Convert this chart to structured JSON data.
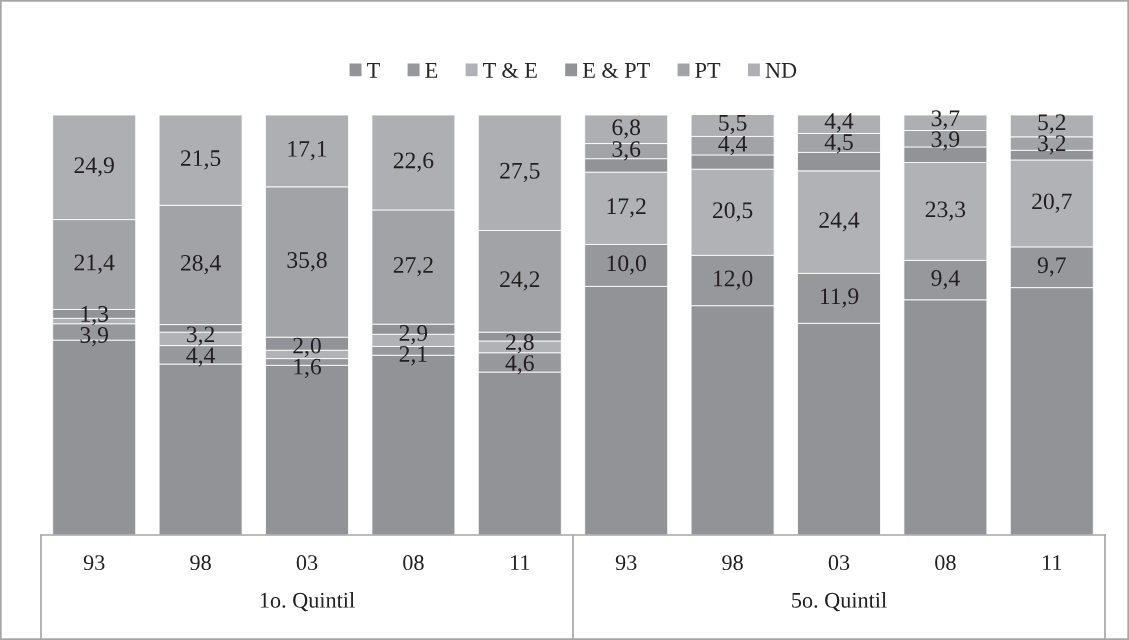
{
  "chart_data": {
    "type": "bar",
    "stacked": true,
    "categories": [
      "93",
      "98",
      "03",
      "08",
      "11",
      "93",
      "98",
      "03",
      "08",
      "11"
    ],
    "annotations": [
      "1o. Quintil",
      "5o. Quintil"
    ],
    "series": [
      {
        "name": "T",
        "color": "#929396",
        "values": [
          46.4,
          40.7,
          40.4,
          42.8,
          38.8,
          59.2,
          54.6,
          50.4,
          56.0,
          58.9
        ],
        "value_labels": [
          null,
          null,
          null,
          null,
          null,
          null,
          null,
          null,
          null,
          null
        ]
      },
      {
        "name": "E",
        "color": "#97989b",
        "values": [
          3.9,
          4.4,
          1.6,
          2.1,
          4.6,
          10.0,
          12.0,
          11.9,
          9.4,
          9.7
        ],
        "value_labels": [
          "3,9",
          "4,4",
          "1,6",
          "2,1",
          "4,6",
          "10,0",
          "12,0",
          "11,9",
          "9,4",
          "9,7"
        ]
      },
      {
        "name": "T & E",
        "color": "#b1b2b5",
        "values": [
          1.3,
          3.2,
          2.0,
          2.9,
          2.8,
          17.2,
          20.5,
          24.4,
          23.3,
          20.7
        ],
        "value_labels": [
          "1,3",
          "3,2",
          "2,0",
          "2,9",
          "2,8",
          "17,2",
          "20,5",
          "24,4",
          "23,3",
          "20,7"
        ]
      },
      {
        "name": "E & PT",
        "color": "#929396",
        "values": [
          2.1,
          1.8,
          3.1,
          2.4,
          2.1,
          3.2,
          3.4,
          4.4,
          3.7,
          2.3
        ],
        "value_labels": [
          null,
          null,
          null,
          null,
          null,
          null,
          null,
          null,
          null,
          null
        ]
      },
      {
        "name": "PT",
        "color": "#a2a3a6",
        "values": [
          21.4,
          28.4,
          35.8,
          27.2,
          24.2,
          3.6,
          4.4,
          4.5,
          3.9,
          3.2
        ],
        "value_labels": [
          "21,4",
          "28,4",
          "35,8",
          "27,2",
          "24,2",
          "3,6",
          "4,4",
          "4,5",
          "3,9",
          "3,2"
        ]
      },
      {
        "name": "ND",
        "color": "#aeafb2",
        "values": [
          24.9,
          21.5,
          17.1,
          22.6,
          27.5,
          6.8,
          5.5,
          4.4,
          3.7,
          5.2
        ],
        "value_labels": [
          "24,9",
          "21,5",
          "17,1",
          "22,6",
          "27,5",
          "6,8",
          "5,5",
          "4,4",
          "3,7",
          "5,2"
        ]
      }
    ],
    "ylim": [
      0,
      100
    ],
    "tick_labels": "x",
    "legend": "top"
  }
}
